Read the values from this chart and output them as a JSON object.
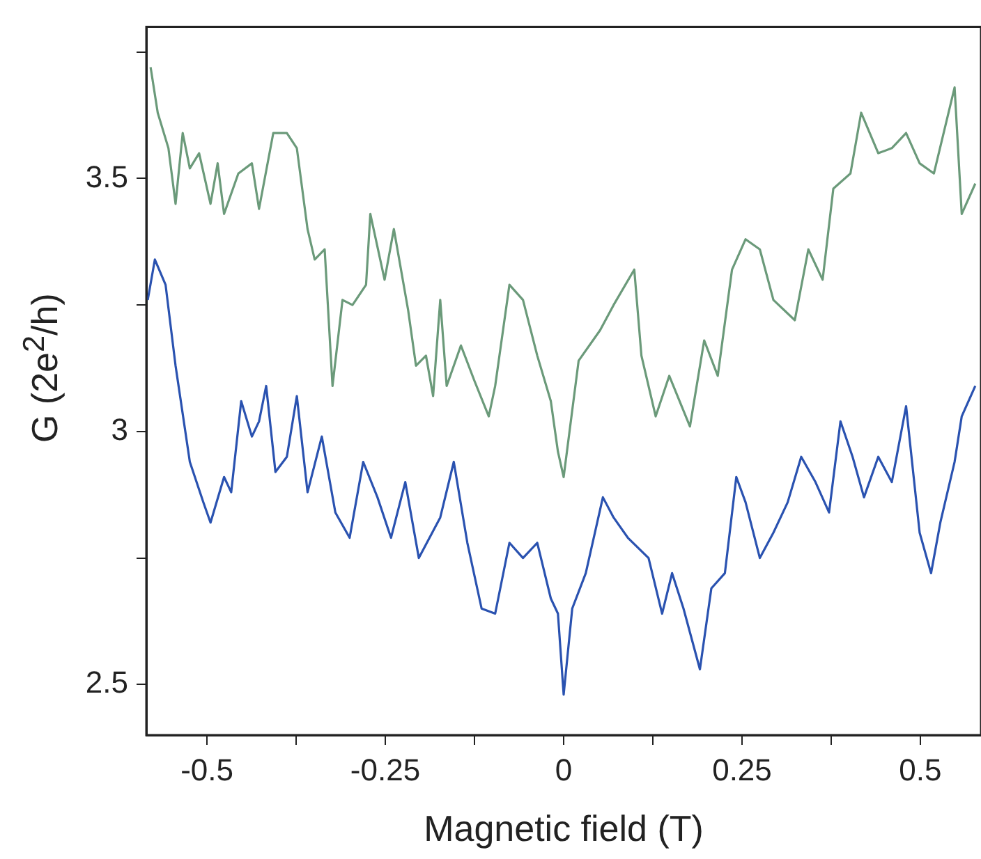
{
  "chart_data": {
    "type": "line",
    "xlabel": "Magnetic field (T)",
    "ylabel": "G (2e$^{2}$/h)",
    "xlim": [
      -0.585,
      0.585
    ],
    "ylim": [
      2.4,
      3.8
    ],
    "xticks": [
      -0.5,
      {
        "value": -0.375,
        "label": null
      },
      -0.25,
      {
        "value": -0.125,
        "label": null
      },
      0,
      {
        "value": 0.125,
        "label": null
      },
      0.25,
      {
        "value": 0.375,
        "label": null
      },
      0.5
    ],
    "yticks": [
      2.5,
      {
        "value": 2.75,
        "label": null
      },
      3,
      {
        "value": 3.25,
        "label": null
      },
      3.5,
      {
        "value": 3.75,
        "label": null
      }
    ],
    "series": [
      {
        "color": "#6b9a7a",
        "x": [
          -0.579,
          -0.569,
          -0.554,
          -0.544,
          -0.534,
          -0.524,
          -0.511,
          -0.495,
          -0.485,
          -0.476,
          -0.456,
          -0.437,
          -0.427,
          -0.407,
          -0.388,
          -0.374,
          -0.359,
          -0.349,
          -0.335,
          -0.324,
          -0.31,
          -0.296,
          -0.277,
          -0.271,
          -0.251,
          -0.238,
          -0.218,
          -0.207,
          -0.193,
          -0.183,
          -0.173,
          -0.164,
          -0.144,
          -0.125,
          -0.105,
          -0.096,
          -0.076,
          -0.057,
          -0.037,
          -0.018,
          -0.008,
          0,
          0.021,
          0.051,
          0.07,
          0.099,
          0.109,
          0.129,
          0.148,
          0.177,
          0.197,
          0.216,
          0.236,
          0.255,
          0.275,
          0.294,
          0.324,
          0.343,
          0.363,
          0.378,
          0.402,
          0.417,
          0.441,
          0.46,
          0.48,
          0.499,
          0.519,
          0.548,
          0.558,
          0.577
        ],
        "values": [
          3.72,
          3.63,
          3.56,
          3.45,
          3.59,
          3.52,
          3.55,
          3.45,
          3.53,
          3.43,
          3.51,
          3.53,
          3.44,
          3.59,
          3.59,
          3.56,
          3.4,
          3.34,
          3.36,
          3.09,
          3.26,
          3.25,
          3.29,
          3.43,
          3.3,
          3.4,
          3.24,
          3.13,
          3.15,
          3.07,
          3.26,
          3.09,
          3.17,
          3.1,
          3.03,
          3.09,
          3.29,
          3.26,
          3.15,
          3.06,
          2.96,
          2.91,
          3.14,
          3.2,
          3.25,
          3.32,
          3.15,
          3.03,
          3.11,
          3.01,
          3.18,
          3.11,
          3.32,
          3.38,
          3.36,
          3.26,
          3.22,
          3.36,
          3.3,
          3.48,
          3.51,
          3.63,
          3.55,
          3.56,
          3.59,
          3.53,
          3.51,
          3.68,
          3.43,
          3.49
        ]
      },
      {
        "color": "#2a52b0",
        "x": [
          -0.583,
          -0.573,
          -0.558,
          -0.544,
          -0.524,
          -0.505,
          -0.495,
          -0.476,
          -0.466,
          -0.452,
          -0.437,
          -0.427,
          -0.417,
          -0.404,
          -0.388,
          -0.374,
          -0.359,
          -0.339,
          -0.32,
          -0.3,
          -0.281,
          -0.261,
          -0.242,
          -0.222,
          -0.203,
          -0.173,
          -0.154,
          -0.135,
          -0.115,
          -0.096,
          -0.076,
          -0.057,
          -0.037,
          -0.018,
          -0.008,
          0,
          0.012,
          0.031,
          0.055,
          0.07,
          0.09,
          0.119,
          0.138,
          0.152,
          0.168,
          0.191,
          0.207,
          0.226,
          0.242,
          0.255,
          0.275,
          0.294,
          0.314,
          0.333,
          0.353,
          0.372,
          0.388,
          0.405,
          0.421,
          0.441,
          0.46,
          0.48,
          0.499,
          0.515,
          0.528,
          0.548,
          0.558,
          0.577
        ],
        "values": [
          3.26,
          3.34,
          3.29,
          3.13,
          2.94,
          2.86,
          2.82,
          2.91,
          2.88,
          3.06,
          2.99,
          3.02,
          3.09,
          2.92,
          2.95,
          3.07,
          2.88,
          2.99,
          2.84,
          2.79,
          2.94,
          2.87,
          2.79,
          2.9,
          2.75,
          2.83,
          2.94,
          2.78,
          2.65,
          2.64,
          2.78,
          2.75,
          2.78,
          2.67,
          2.64,
          2.48,
          2.65,
          2.72,
          2.87,
          2.83,
          2.79,
          2.75,
          2.64,
          2.72,
          2.65,
          2.53,
          2.69,
          2.72,
          2.91,
          2.86,
          2.75,
          2.8,
          2.86,
          2.95,
          2.9,
          2.84,
          3.02,
          2.95,
          2.87,
          2.95,
          2.9,
          3.05,
          2.8,
          2.72,
          2.82,
          2.94,
          3.03,
          3.09
        ]
      }
    ]
  }
}
